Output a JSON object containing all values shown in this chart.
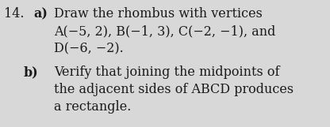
{
  "background_color": "#d8d8d8",
  "number_label": "14.",
  "part_a_bold": "a)",
  "part_a_line1": "Draw the rhombus with vertices",
  "part_a_line2": "A(−5, 2), B(−1, 3), C(−2, −1), and",
  "part_a_line3": "D(−6, −2).",
  "part_b_bold": "b)",
  "part_b_line1": "Verify that joining the midpoints of",
  "part_b_line2": "the adjacent sides of ABCD produces",
  "part_b_line3": "a rectangle.",
  "font_size": 11.5,
  "text_color": "#1a1a1a"
}
